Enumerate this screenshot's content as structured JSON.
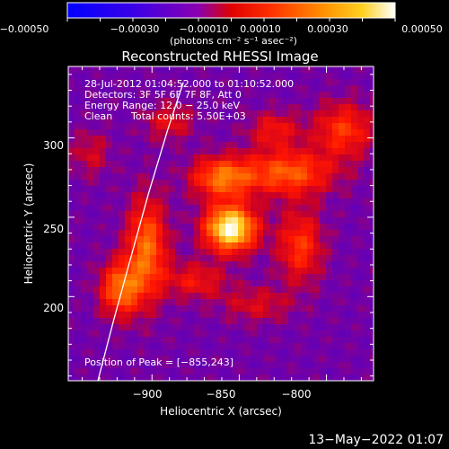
{
  "colorbar": {
    "tick_labels": [
      "−0.00050",
      "−0.00030",
      "−0.00010",
      "0.00010",
      "0.00030",
      "0.00050"
    ],
    "tick_values": [
      -0.0005,
      -0.0003,
      -0.0001,
      0.0001,
      0.0003,
      0.0005
    ],
    "range": [
      -0.0005,
      0.0005
    ],
    "units": "(photons cm⁻² s⁻¹ asec⁻²)",
    "colors": [
      "#0000ff",
      "#7a00c0",
      "#ff0000",
      "#ffb000",
      "#ffffff"
    ]
  },
  "chart_data": {
    "type": "heatmap",
    "title": "Reconstructed RHESSI Image",
    "xlabel": "Heliocentric X (arcsec)",
    "ylabel": "Heliocentric Y (arcsec)",
    "xlim": [
      -948,
      -773
    ],
    "ylim": [
      147,
      345
    ],
    "x_ticks": [
      -900,
      -850,
      -800
    ],
    "y_ticks": [
      200,
      250,
      300
    ],
    "x_tick_labels": [
      "−900",
      "−850",
      "−800"
    ],
    "y_tick_labels": [
      "200",
      "250",
      "300"
    ],
    "peak": {
      "x": -855,
      "y": 243
    },
    "limb": [
      {
        "x": -931,
        "y": 147
      },
      {
        "x": -922,
        "y": 185
      },
      {
        "x": -912,
        "y": 225
      },
      {
        "x": -902,
        "y": 265
      },
      {
        "x": -891,
        "y": 305
      },
      {
        "x": -882,
        "y": 335
      }
    ],
    "sources": [
      {
        "x": -855,
        "y": 243,
        "amp": 1.0,
        "sx": 10,
        "sy": 10
      },
      {
        "x": -860,
        "y": 275,
        "amp": 0.55,
        "sx": 12,
        "sy": 9
      },
      {
        "x": -903,
        "y": 230,
        "amp": 0.55,
        "sx": 8,
        "sy": 22
      },
      {
        "x": -918,
        "y": 205,
        "amp": 0.55,
        "sx": 8,
        "sy": 12
      },
      {
        "x": -822,
        "y": 278,
        "amp": 0.5,
        "sx": 18,
        "sy": 10
      },
      {
        "x": -815,
        "y": 232,
        "amp": 0.4,
        "sx": 9,
        "sy": 16
      },
      {
        "x": -790,
        "y": 305,
        "amp": 0.4,
        "sx": 12,
        "sy": 12
      },
      {
        "x": -830,
        "y": 305,
        "amp": 0.3,
        "sx": 10,
        "sy": 8
      },
      {
        "x": -875,
        "y": 210,
        "amp": 0.3,
        "sx": 12,
        "sy": 8
      },
      {
        "x": -890,
        "y": 310,
        "amp": 0.25,
        "sx": 10,
        "sy": 8
      },
      {
        "x": -840,
        "y": 195,
        "amp": 0.22,
        "sx": 14,
        "sy": 8
      },
      {
        "x": -935,
        "y": 290,
        "amp": 0.2,
        "sx": 8,
        "sy": 10
      }
    ]
  },
  "annotations": {
    "line1": "28-Jul-2012 01:04:52.000 to 01:10:52.000",
    "line2": "Detectors: 3F 5F 6F 7F 8F, Att 0",
    "line3": "Energy Range: 12.0 − 25.0 keV",
    "line4_a": "Clean",
    "line4_b": "Total counts: 5.50E+03",
    "peak_label": "Position of Peak = [−855,243]"
  },
  "footer": {
    "timestamp": "13−May−2022 01:07"
  }
}
